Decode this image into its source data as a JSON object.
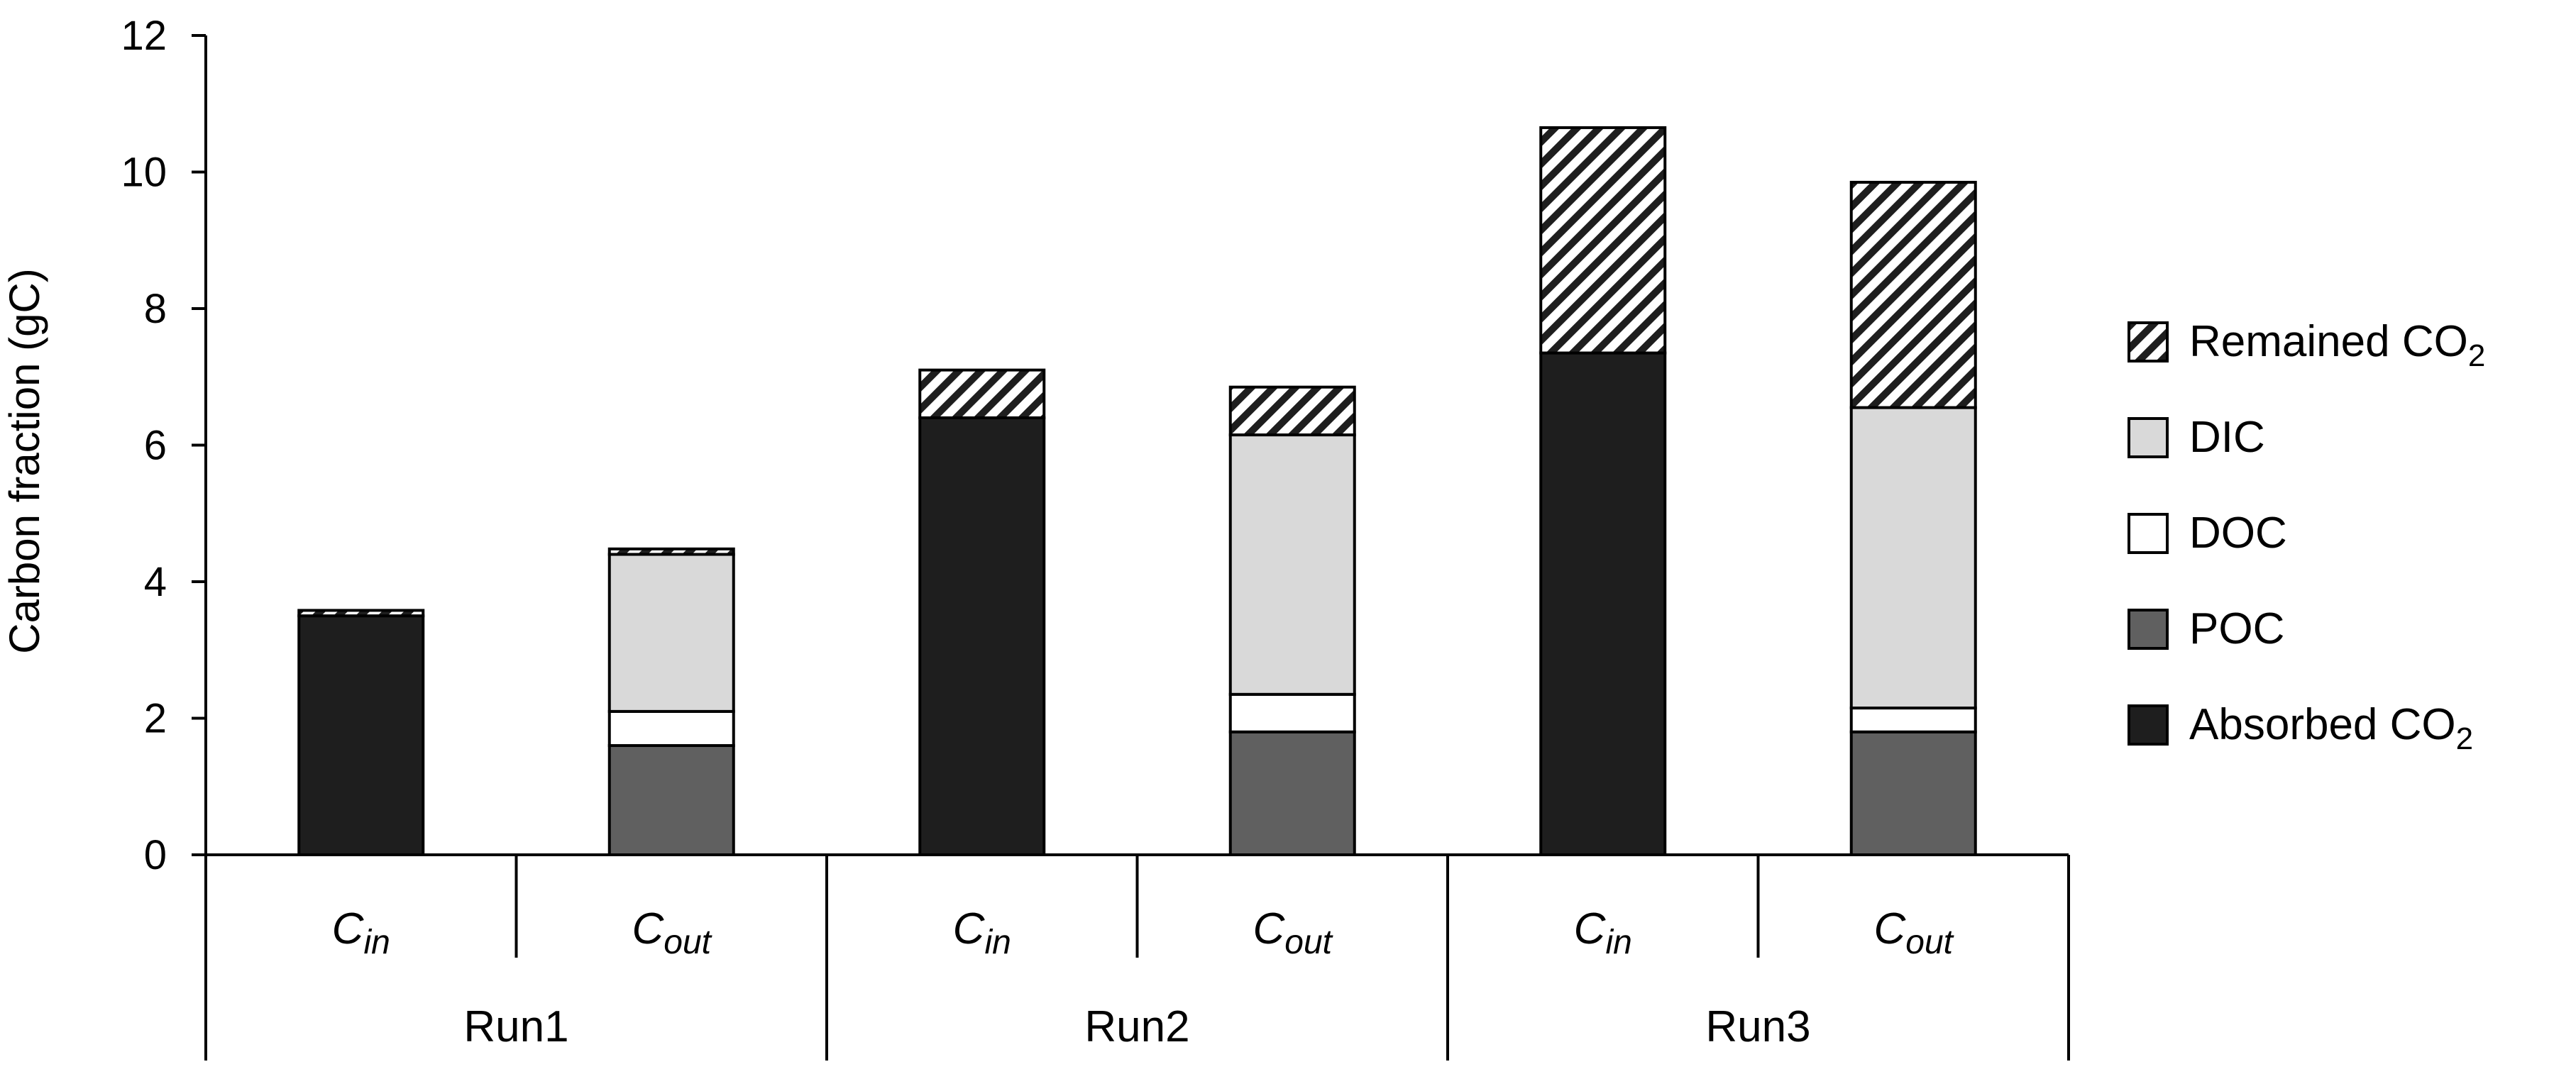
{
  "chart_data": {
    "type": "bar",
    "stacked": true,
    "ylabel": "Carbon fraction (gC)",
    "ylim": [
      0,
      12
    ],
    "yticks": [
      "0",
      "2",
      "4",
      "6",
      "8",
      "10",
      "12"
    ],
    "grid": false,
    "legend_position": "right",
    "groups": [
      "Run1",
      "Run2",
      "Run3"
    ],
    "category_labels": [
      {
        "main": "C",
        "sub": "in"
      },
      {
        "main": "C",
        "sub": "out"
      },
      {
        "main": "C",
        "sub": "in"
      },
      {
        "main": "C",
        "sub": "out"
      },
      {
        "main": "C",
        "sub": "in"
      },
      {
        "main": "C",
        "sub": "out"
      }
    ],
    "series": [
      {
        "name": "Absorbed CO₂",
        "legend_text": "Absorbed CO",
        "legend_sub": "2",
        "color": "#1e1e1e",
        "pattern": "solid",
        "values": [
          3.5,
          0,
          6.4,
          0,
          7.35,
          0
        ]
      },
      {
        "name": "POC",
        "legend_text": "POC",
        "legend_sub": "",
        "color": "#606060",
        "pattern": "solid",
        "values": [
          0,
          1.6,
          0,
          1.8,
          0,
          1.8
        ]
      },
      {
        "name": "DOC",
        "legend_text": "DOC",
        "legend_sub": "",
        "color": "#ffffff",
        "pattern": "solid",
        "values": [
          0,
          0.5,
          0,
          0.55,
          0,
          0.35
        ]
      },
      {
        "name": "DIC",
        "legend_text": "DIC",
        "legend_sub": "",
        "color": "#d9d9d9",
        "pattern": "solid",
        "values": [
          0,
          2.3,
          0,
          3.8,
          0,
          4.4
        ]
      },
      {
        "name": "Remained CO₂",
        "legend_text": "Remained CO",
        "legend_sub": "2",
        "color": "#1e1e1e",
        "pattern": "hatch",
        "values": [
          0.08,
          0.08,
          0.7,
          0.7,
          3.3,
          3.3
        ]
      }
    ]
  }
}
